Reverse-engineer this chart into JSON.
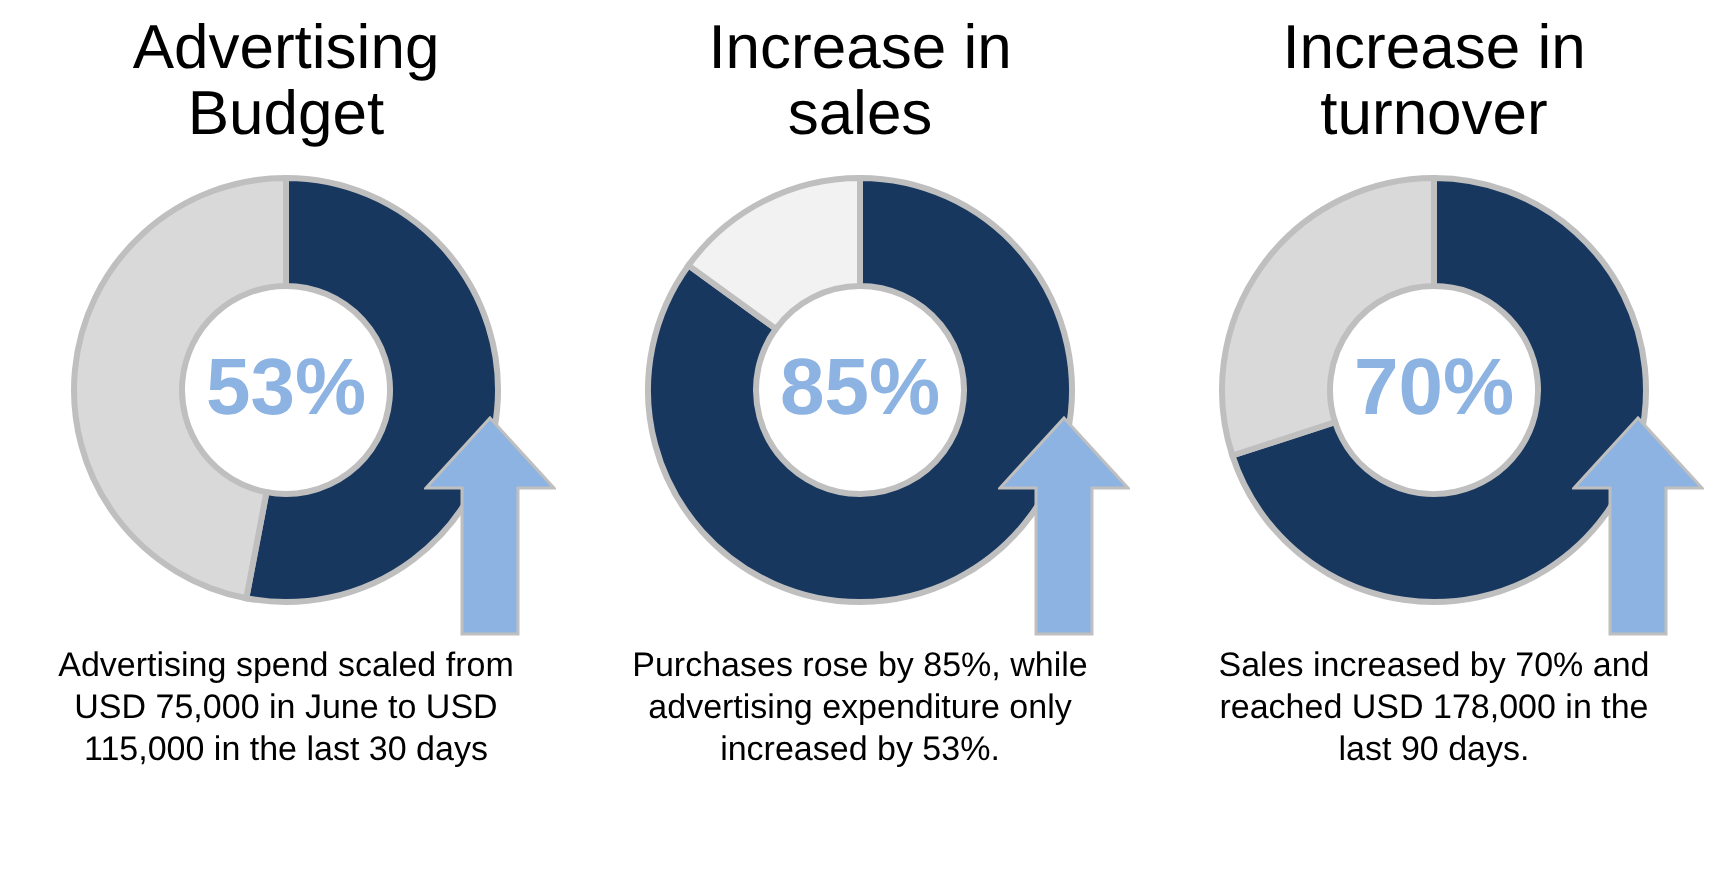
{
  "chart_data": [
    {
      "type": "donut",
      "title": "Advertising Budget",
      "categories": [
        null,
        null
      ],
      "values": [
        53,
        47
      ],
      "colors": [
        "#17375e",
        "#d9d9d9"
      ],
      "value_labels": [
        "53%",
        null
      ],
      "annotations": [
        "Advertising spend scaled from USD 75,000 in June to USD 115,000 in the last 30 days"
      ]
    },
    {
      "type": "donut",
      "title": "Increase in sales",
      "categories": [
        null,
        null
      ],
      "values": [
        85,
        15
      ],
      "colors": [
        "#17375e",
        "#f2f2f2"
      ],
      "value_labels": [
        "85%",
        null
      ],
      "annotations": [
        "Purchases rose by 85%, while advertising expenditure only increased by 53%."
      ]
    },
    {
      "type": "donut",
      "title": "Increase in turnover",
      "categories": [
        null,
        null
      ],
      "values": [
        70,
        30
      ],
      "colors": [
        "#17375e",
        "#d9d9d9"
      ],
      "value_labels": [
        "70%",
        null
      ],
      "annotations": [
        "Sales increased by 70% and reached USD 178,000 in the last 90 days."
      ]
    }
  ]
}
